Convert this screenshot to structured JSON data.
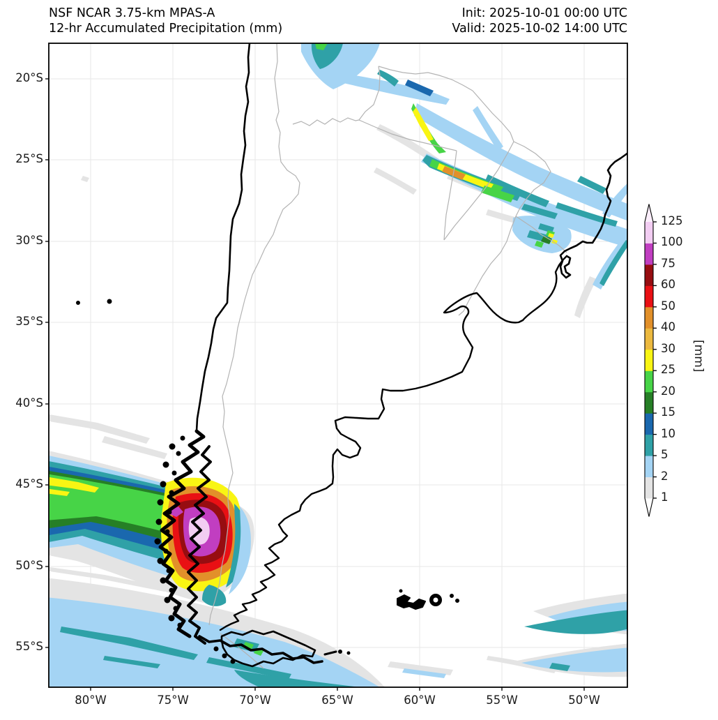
{
  "header": {
    "title_line1": "NSF NCAR 3.75-km MPAS-A",
    "title_line2": "12-hr Accumulated Precipitation (mm)",
    "init_line": "Init: 2025-10-01 00:00 UTC",
    "valid_line": "Valid: 2025-10-02 14:00 UTC"
  },
  "axes": {
    "y_tick_labels": [
      "20°S",
      "25°S",
      "30°S",
      "35°S",
      "40°S",
      "45°S",
      "50°S",
      "55°S"
    ],
    "x_tick_labels": [
      "80°W",
      "75°W",
      "70°W",
      "65°W",
      "60°W",
      "55°W",
      "50°W"
    ]
  },
  "colorbar": {
    "unit_label": "[mm]",
    "tick_labels": [
      "1",
      "2",
      "5",
      "10",
      "15",
      "20",
      "25",
      "30",
      "40",
      "50",
      "60",
      "75",
      "100",
      "125"
    ],
    "segment_colors_bottom_to_top": [
      "#e4e4e4",
      "#a4d4f4",
      "#2fa1a7",
      "#1a68ae",
      "#267f26",
      "#47d447",
      "#f9f513",
      "#ecb93f",
      "#e2902a",
      "#e91014",
      "#970d11",
      "#c13ec1",
      "#f2cdf2"
    ],
    "under_color": "#ffffff",
    "over_color": "#fbeefb"
  },
  "map": {
    "region": "Southern South America (Chile / Argentina / Paraguay / Uruguay / S Brazil)",
    "background": "#ffffff",
    "coastline_color": "#000000",
    "border_color": "#b3b3b3",
    "gridline_color": "#e7e7e7",
    "palette": {
      "gray": "#e4e4e4",
      "lightblue": "#a4d4f4",
      "teal": "#2fa1a7",
      "darkblue": "#1a68ae",
      "darkgreen": "#267f26",
      "green": "#47d447",
      "yellow": "#f9f513",
      "lightorange": "#ecb93f",
      "orange": "#e2902a",
      "red": "#e91014",
      "darkred": "#970d11",
      "magenta": "#c13ec1",
      "pink": "#f2cdf2"
    },
    "precip_features": [
      {
        "location": "Chilean Patagonia coast ~46-50S, 74-72W",
        "max_level_mm": ">100"
      },
      {
        "location": "Zonal Pacific band ~44-46S entering west edge",
        "max_level_mm": "25-30"
      },
      {
        "location": "NE Argentina / Paraguay / S Brazil diagonal bands",
        "max_level_mm": "40-50"
      },
      {
        "location": "Rio Grande do Sul cluster ~28-29S",
        "max_level_mm": "25-30"
      },
      {
        "location": "Far-south ocean band ~52-56S",
        "max_level_mm": "5-10"
      },
      {
        "location": "Atlantic band off S Brazil coast ~28-33S",
        "max_level_mm": "5-10"
      },
      {
        "location": "SE Atlantic band ~53-54S near 50W",
        "max_level_mm": "5-10"
      }
    ]
  }
}
